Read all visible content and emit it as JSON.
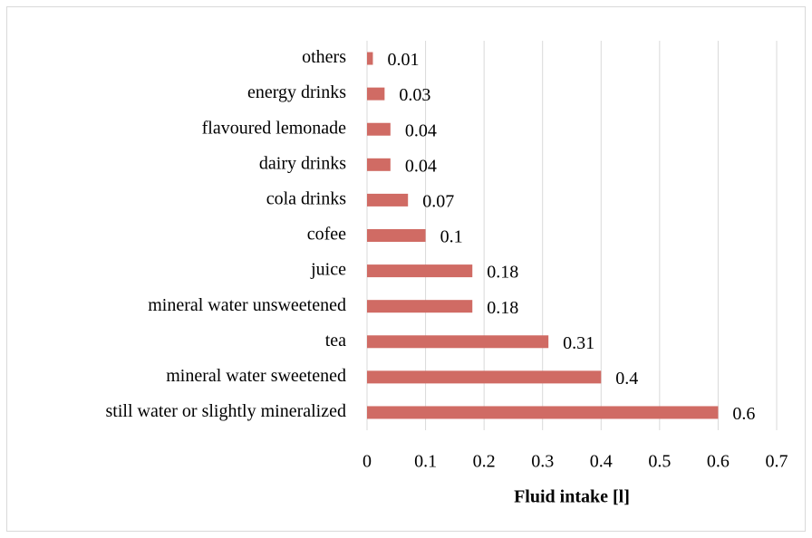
{
  "chart_data": {
    "type": "bar",
    "orientation": "horizontal",
    "xlabel": "Fluid intake [l]",
    "categories": [
      "others",
      "energy drinks",
      "flavoured lemonade",
      "dairy drinks",
      "cola drinks",
      "cofee",
      "juice",
      "mineral water unsweetened",
      "tea",
      "mineral water sweetened",
      "still water or slightly mineralized"
    ],
    "values": [
      0.01,
      0.03,
      0.04,
      0.04,
      0.07,
      0.1,
      0.18,
      0.18,
      0.31,
      0.4,
      0.6
    ],
    "color": "#d06b64",
    "xlim": [
      0,
      0.7
    ],
    "xticks": [
      0,
      0.1,
      0.2,
      0.3,
      0.4,
      0.5,
      0.6,
      0.7
    ],
    "grid": true
  }
}
